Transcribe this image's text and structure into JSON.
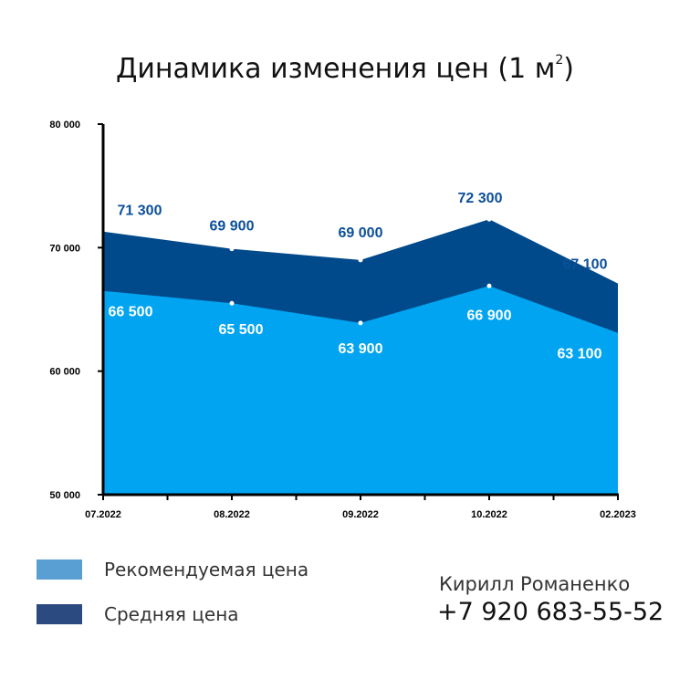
{
  "chart_data": {
    "type": "area",
    "title": "Динамика изменения цен (1 м",
    "title_sup": "2",
    "title_close": ")",
    "categories": [
      "07.2022",
      "08.2022",
      "09.2022",
      "10.2022",
      "02.2023"
    ],
    "y_tick_labels": [
      "50 000",
      "60 000",
      "70 000",
      "80 000"
    ],
    "y_ticks": [
      50000,
      60000,
      70000,
      80000
    ],
    "ylim": [
      50000,
      80000
    ],
    "grid": false,
    "legend_position": "bottom-left",
    "series": [
      {
        "name": "Средняя цена",
        "values": [
          71300,
          69900,
          69000,
          72300,
          67100
        ],
        "labels": [
          "71 300",
          "69 900",
          "69 000",
          "72 300",
          "67 100"
        ],
        "color": "#004a8b",
        "label_color": "#0b4f9a"
      },
      {
        "name": "Рекомендуемая цена",
        "values": [
          66500,
          65500,
          63900,
          66900,
          63100
        ],
        "labels": [
          "66 500",
          "65 500",
          "63 900",
          "66 900",
          "63 100"
        ],
        "color": "#00a4f0",
        "label_color": "#ffffff"
      }
    ]
  },
  "legend": {
    "items": [
      {
        "label": "Рекомендуемая цена",
        "color": "#5a9fd4"
      },
      {
        "label": "Средняя цена",
        "color": "#2b4a80"
      }
    ]
  },
  "contact": {
    "name": "Кирилл Романенко",
    "phone": "+7 920 683-55-52"
  }
}
